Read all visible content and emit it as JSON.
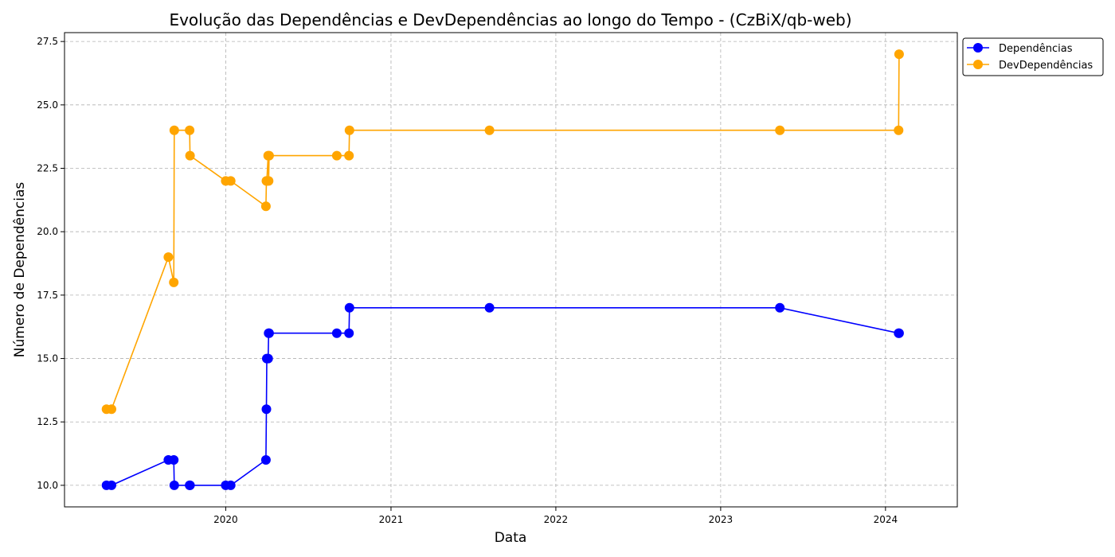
{
  "chart_data": {
    "type": "line",
    "title": "Evolução das Dependências e DevDependências ao longo do Tempo - (CzBiX/qb-web)",
    "xlabel": "Data",
    "ylabel": "Número de Dependências",
    "xlim": [
      "2019-01-09",
      "2024-06-08"
    ],
    "ylim": [
      9.15,
      27.85
    ],
    "x_ticks": [
      "2020",
      "2021",
      "2022",
      "2023",
      "2024"
    ],
    "x_tick_dates": [
      "2020-01-01",
      "2021-01-01",
      "2022-01-01",
      "2023-01-01",
      "2024-01-01"
    ],
    "y_ticks": [
      "10.0",
      "12.5",
      "15.0",
      "17.5",
      "20.0",
      "22.5",
      "25.0",
      "27.5"
    ],
    "y_tick_values": [
      10.0,
      12.5,
      15.0,
      17.5,
      20.0,
      22.5,
      25.0,
      27.5
    ],
    "grid": true,
    "legend_position": "outside-top-right",
    "x": [
      "2019-04-12",
      "2019-04-23",
      "2019-08-27",
      "2019-09-08",
      "2019-09-09",
      "2019-10-13",
      "2019-10-14",
      "2020-01-01",
      "2020-01-12",
      "2020-03-30",
      "2020-03-31",
      "2020-04-01",
      "2020-04-04",
      "2020-04-05",
      "2020-04-06",
      "2020-09-03",
      "2020-09-30",
      "2020-10-01",
      "2021-08-07",
      "2023-05-12",
      "2024-01-30",
      "2024-01-31"
    ],
    "series": [
      {
        "name": "Dependências",
        "color": "#0000ff",
        "values": [
          10,
          10,
          11,
          11,
          10,
          10,
          10,
          10,
          10,
          11,
          13,
          15,
          15,
          16,
          16,
          16,
          16,
          17,
          17,
          17,
          16,
          16
        ]
      },
      {
        "name": "DevDependências",
        "color": "#ffa500",
        "values": [
          13,
          13,
          19,
          18,
          24,
          24,
          23,
          22,
          22,
          21,
          22,
          22,
          23,
          22,
          23,
          23,
          23,
          24,
          24,
          24,
          24,
          27
        ]
      }
    ]
  }
}
